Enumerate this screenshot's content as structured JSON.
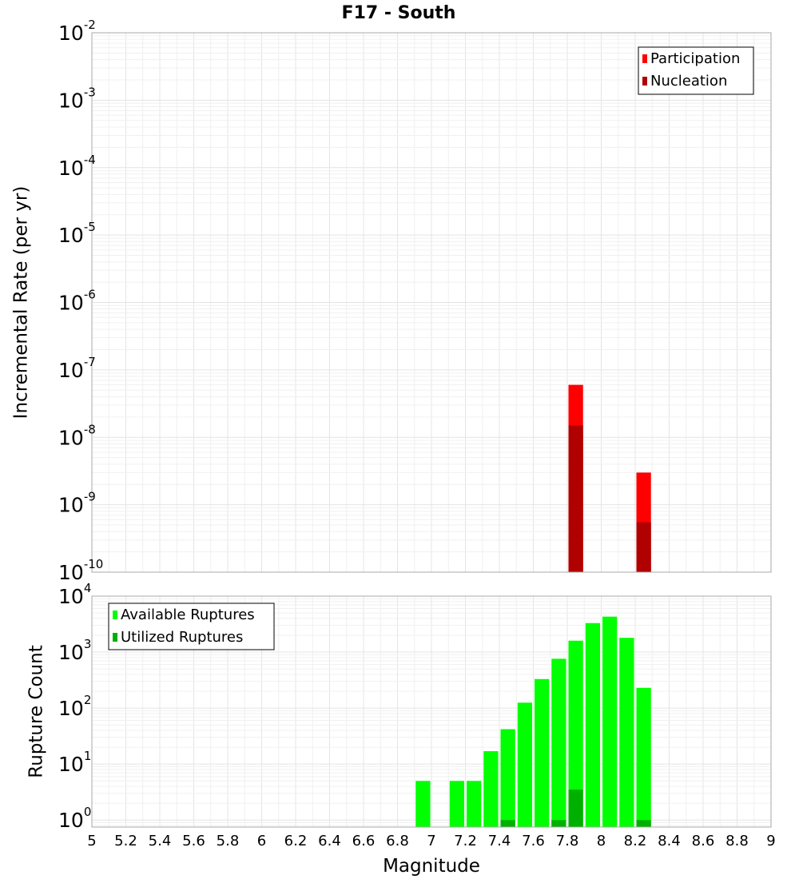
{
  "title": "F17 - South",
  "xlabel": "Magnitude",
  "x_ticks": [
    "5",
    "5.2",
    "5.4",
    "5.6",
    "5.8",
    "6",
    "6.2",
    "6.4",
    "6.6",
    "6.8",
    "7",
    "7.2",
    "7.4",
    "7.6",
    "7.8",
    "8",
    "8.2",
    "8.4",
    "8.6",
    "8.8",
    "9"
  ],
  "chart_data": [
    {
      "type": "bar",
      "title": "F17 - South",
      "ylabel": "Incremental Rate (per yr)",
      "xlabel": "",
      "xlim": [
        5,
        9
      ],
      "ylim": [
        1e-10,
        0.01
      ],
      "yscale": "log",
      "grid": true,
      "legend_position": "top-right",
      "y_tick_exponents": [
        "-10",
        "-9",
        "-8",
        "-7",
        "-6",
        "-5",
        "-4",
        "-3",
        "-2"
      ],
      "bar_width": 0.1,
      "series": [
        {
          "name": "Participation",
          "color": "#ff0000",
          "x": [
            7.85,
            8.25
          ],
          "values": [
            6e-08,
            3e-09
          ]
        },
        {
          "name": "Nucleation",
          "color": "#b00000",
          "x": [
            7.85,
            8.25
          ],
          "values": [
            1.5e-08,
            5.5e-10
          ]
        }
      ]
    },
    {
      "type": "bar",
      "title": "",
      "ylabel": "Rupture Count",
      "xlabel": "Magnitude",
      "xlim": [
        5,
        9
      ],
      "ylim": [
        0.75,
        10000
      ],
      "yscale": "log",
      "grid": true,
      "legend_position": "top-left",
      "y_tick_exponents": [
        "0",
        "1",
        "2",
        "3",
        "4"
      ],
      "bar_width": 0.1,
      "series": [
        {
          "name": "Available Ruptures",
          "color": "#00ff00",
          "x": [
            6.95,
            7.15,
            7.25,
            7.35,
            7.45,
            7.55,
            7.65,
            7.75,
            7.85,
            7.95,
            8.05,
            8.15,
            8.25
          ],
          "values": [
            5,
            5,
            5,
            17,
            42,
            125,
            330,
            760,
            1600,
            3300,
            4300,
            1800,
            230
          ]
        },
        {
          "name": "Utilized Ruptures",
          "color": "#00b000",
          "x": [
            7.45,
            7.75,
            7.85,
            8.25
          ],
          "values": [
            1,
            1,
            3.5,
            1
          ]
        }
      ]
    }
  ]
}
